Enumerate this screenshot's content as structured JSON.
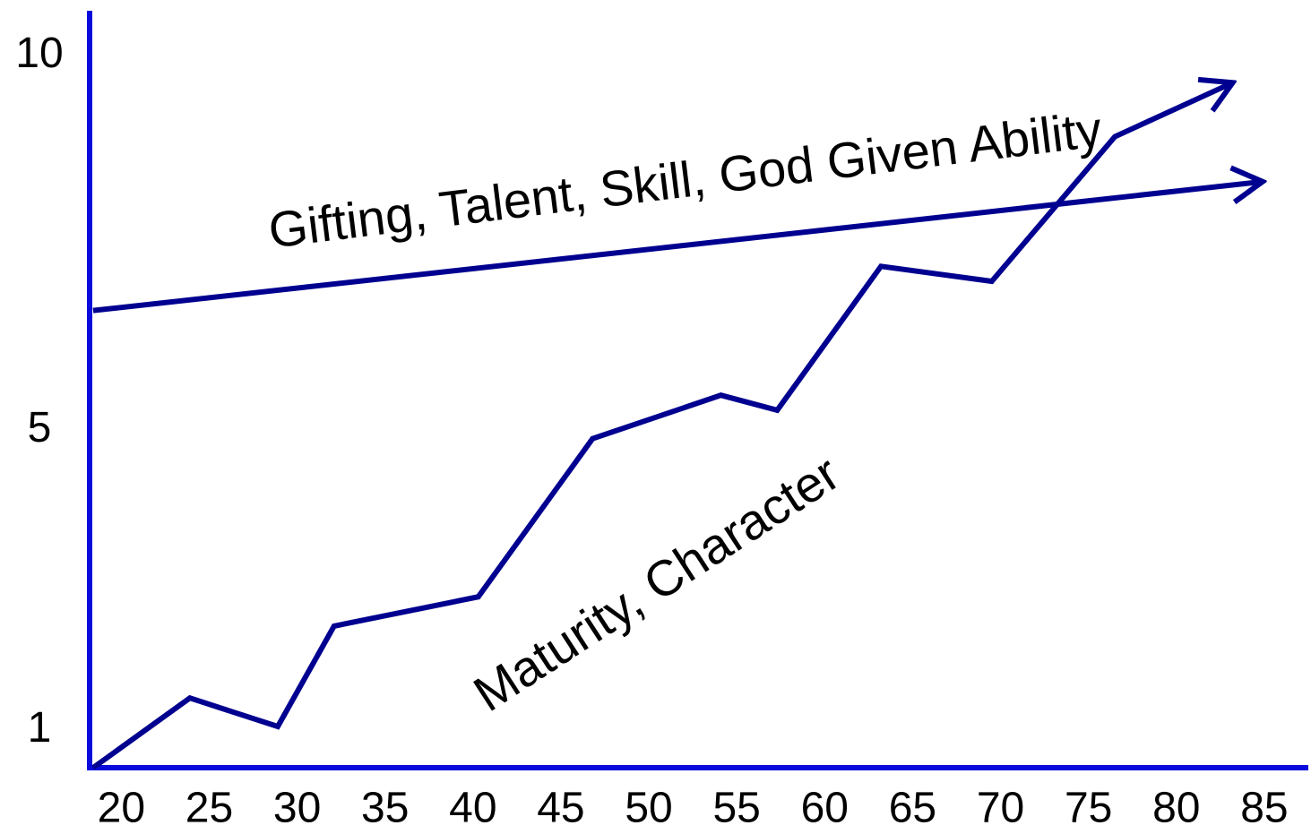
{
  "chart_data": {
    "type": "line",
    "xlim": [
      18.2,
      87.5
    ],
    "xticks": [
      20,
      25,
      30,
      35,
      40,
      45,
      50,
      55,
      60,
      65,
      70,
      75,
      80,
      85
    ],
    "ylim": [
      0.5,
      10.6
    ],
    "yticks": [
      1,
      5,
      10
    ],
    "axis_color": "#0a0adc",
    "series": [
      {
        "name": "Gifting, Talent, Skill, God Given Ability",
        "color": "#000090",
        "x": [
          18.4,
          84.9
        ],
        "values": [
          6.6,
          8.32
        ]
      },
      {
        "name": "Maturity, Character",
        "color": "#000090",
        "x": [
          18.4,
          23.9,
          28.9,
          32.1,
          40.3,
          46.8,
          54.1,
          57.3,
          63.2,
          69.5,
          76.5,
          83.2
        ],
        "values": [
          0.5,
          1.43,
          1.05,
          2.39,
          2.78,
          4.89,
          5.47,
          5.27,
          7.19,
          6.99,
          8.92,
          9.64
        ]
      }
    ]
  }
}
